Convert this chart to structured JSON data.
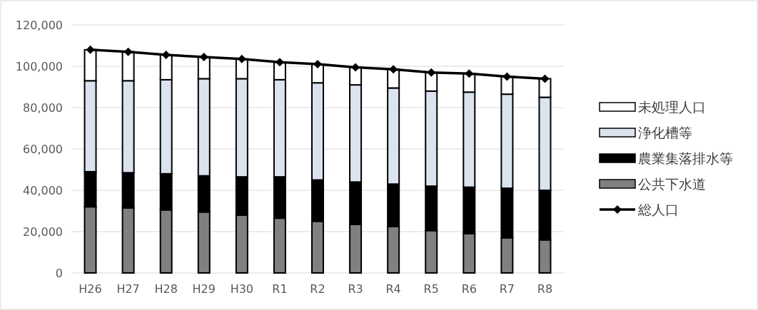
{
  "chart_data": {
    "type": "bar",
    "stacked": true,
    "categories": [
      "H26",
      "H27",
      "H28",
      "H29",
      "H30",
      "R1",
      "R2",
      "R3",
      "R4",
      "R5",
      "R6",
      "R7",
      "R8"
    ],
    "series": [
      {
        "name": "公共下水道",
        "color": "#808080",
        "values": [
          32000,
          31500,
          30500,
          29500,
          28000,
          26500,
          25000,
          23500,
          22500,
          20500,
          19000,
          17000,
          16000
        ]
      },
      {
        "name": "農業集落排水等",
        "color": "#000000",
        "values": [
          17000,
          17000,
          17500,
          17500,
          18500,
          20000,
          20000,
          20500,
          20500,
          21500,
          22500,
          24000,
          24000
        ]
      },
      {
        "name": "浄化槽等",
        "color": "#dae3ee",
        "values": [
          44000,
          44500,
          45500,
          47000,
          47500,
          47000,
          47000,
          47000,
          46500,
          46000,
          46000,
          45500,
          45000
        ]
      },
      {
        "name": "未処理人口",
        "color": "#ffffff",
        "values": [
          15000,
          14000,
          12000,
          10500,
          9500,
          8500,
          9000,
          8500,
          9000,
          9000,
          9000,
          8500,
          9000
        ]
      },
      {
        "name": "総人口",
        "type": "line",
        "color": "#000000",
        "marker": "diamond",
        "values": [
          108000,
          107000,
          105500,
          104500,
          103500,
          102000,
          101000,
          99500,
          98500,
          97000,
          96500,
          95000,
          94000
        ]
      }
    ],
    "ylim": [
      0,
      120000
    ],
    "yticks": [
      {
        "value": 0,
        "label": "0"
      },
      {
        "value": 20000,
        "label": "20,000"
      },
      {
        "value": 40000,
        "label": "40,000"
      },
      {
        "value": 60000,
        "label": "60,000"
      },
      {
        "value": 80000,
        "label": "80,000"
      },
      {
        "value": 100000,
        "label": "100,000"
      },
      {
        "value": 120000,
        "label": "120,000"
      }
    ],
    "grid": "y",
    "legend": "right"
  }
}
